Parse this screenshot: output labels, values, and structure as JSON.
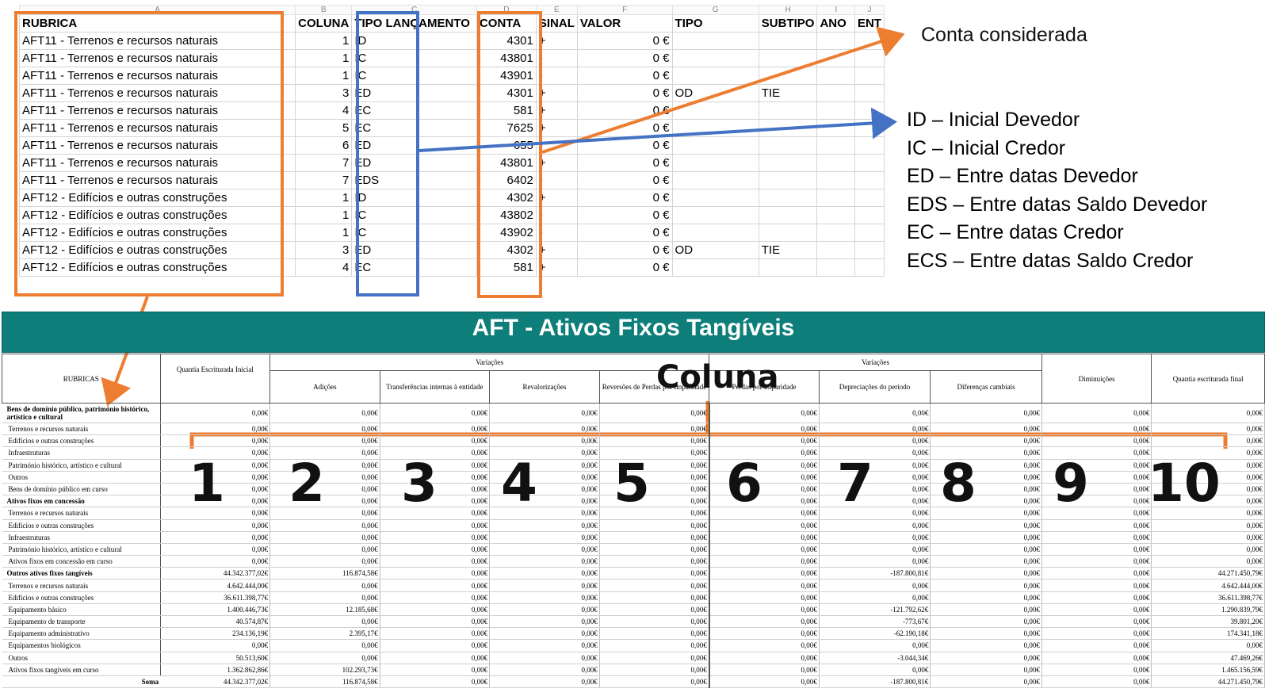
{
  "sheet": {
    "col_letters": [
      "A",
      "B",
      "C",
      "D",
      "E",
      "F",
      "G",
      "H",
      "I",
      "J"
    ],
    "headers": [
      "RUBRICA",
      "COLUNA",
      "TIPO LANÇAMENTO",
      "CONTA",
      "SINAL",
      "VALOR",
      "TIPO",
      "SUBTIPO",
      "ANO",
      "ENT"
    ],
    "rows": [
      [
        "AFT11 - Terrenos e recursos naturais",
        "1",
        "ID",
        "4301",
        "+",
        "0 €",
        "",
        ""
      ],
      [
        "AFT11 - Terrenos e recursos naturais",
        "1",
        "IC",
        "43801",
        "-",
        "0 €",
        "",
        ""
      ],
      [
        "AFT11 - Terrenos e recursos naturais",
        "1",
        "IC",
        "43901",
        "-",
        "0 €",
        "",
        ""
      ],
      [
        "AFT11 - Terrenos e recursos naturais",
        "3",
        "ED",
        "4301",
        "+",
        "0 €",
        "OD",
        "TIE"
      ],
      [
        "AFT11 - Terrenos e recursos naturais",
        "4",
        "EC",
        "581",
        "+",
        "0 €",
        "",
        ""
      ],
      [
        "AFT11 - Terrenos e recursos naturais",
        "5",
        "EC",
        "7625",
        "+",
        "0 €",
        "",
        ""
      ],
      [
        "AFT11 - Terrenos e recursos naturais",
        "6",
        "ED",
        "655",
        "-",
        "0 €",
        "",
        ""
      ],
      [
        "AFT11 - Terrenos e recursos naturais",
        "7",
        "ED",
        "43801",
        "+",
        "0 €",
        "",
        ""
      ],
      [
        "AFT11 - Terrenos e recursos naturais",
        "7",
        "EDS",
        "6402",
        "-",
        "0 €",
        "",
        ""
      ],
      [
        "AFT12 - Edifícios e outras construções",
        "1",
        "ID",
        "4302",
        "+",
        "0 €",
        "",
        ""
      ],
      [
        "AFT12 - Edifícios e outras construções",
        "1",
        "IC",
        "43802",
        "-",
        "0 €",
        "",
        ""
      ],
      [
        "AFT12 - Edifícios e outras construções",
        "1",
        "IC",
        "43902",
        "-",
        "0 €",
        "",
        ""
      ],
      [
        "AFT12 - Edifícios e outras construções",
        "3",
        "ED",
        "4302",
        "+",
        "0 €",
        "OD",
        "TIE"
      ],
      [
        "AFT12 - Edifícios e outras construções",
        "4",
        "EC",
        "581",
        "+",
        "0 €",
        "",
        ""
      ]
    ]
  },
  "annotations": {
    "conta_considerada": "Conta considerada",
    "legend": [
      "ID – Inicial Devedor",
      "IC – Inicial Credor",
      "ED – Entre datas Devedor",
      "EDS – Entre datas Saldo Devedor",
      "EC – Entre datas Credor",
      "ECS – Entre datas Saldo Credor"
    ],
    "coluna": "Coluna",
    "column_numbers": [
      "1",
      "2",
      "3",
      "4",
      "5",
      "6",
      "7",
      "8",
      "9",
      "10"
    ],
    "arrow_color_orange": "#ED7D31",
    "arrow_color_blue": "#4472C4"
  },
  "report": {
    "title": "AFT - Ativos Fixos Tangíveis",
    "title_bg": "#0d7e79",
    "col_rubricas": "RUBRICAS",
    "col_inicial": "Quantia Escriturada Inicial",
    "variacoes": "Variações",
    "col_adicoes": "Adições",
    "col_transf": "Transferências internas à entidade",
    "col_revalor": "Revalorizações",
    "col_revers": "Reversões de Perdas por Imparidade",
    "col_perdas": "Perdas por imparidade",
    "col_deprec": "Depreciações do período",
    "col_difcamb": "Diferenças cambiais",
    "col_diminu": "Diminuições",
    "col_final": "Quantia escriturada final",
    "soma_label": "Soma",
    "rows": [
      {
        "label": "Bens de domínio público, património histórico, artístico e cultural",
        "bold": true,
        "v": [
          "0,00€",
          "0,00€",
          "0,00€",
          "0,00€",
          "0,00€",
          "0,00€",
          "0,00€",
          "0,00€",
          "0,00€",
          "0,00€"
        ]
      },
      {
        "label": "Terrenos e recursos naturais",
        "bold": false,
        "v": [
          "0,00€",
          "0,00€",
          "0,00€",
          "0,00€",
          "0,00€",
          "0,00€",
          "0,00€",
          "0,00€",
          "0,00€",
          "0,00€"
        ]
      },
      {
        "label": "Edifícios e outras construções",
        "bold": false,
        "v": [
          "0,00€",
          "0,00€",
          "0,00€",
          "0,00€",
          "0,00€",
          "0,00€",
          "0,00€",
          "0,00€",
          "0,00€",
          "0,00€"
        ]
      },
      {
        "label": "Infraestruturas",
        "bold": false,
        "v": [
          "0,00€",
          "0,00€",
          "0,00€",
          "0,00€",
          "0,00€",
          "0,00€",
          "0,00€",
          "0,00€",
          "0,00€",
          "0,00€"
        ]
      },
      {
        "label": "Património histórico, artístico e cultural",
        "bold": false,
        "v": [
          "0,00€",
          "0,00€",
          "0,00€",
          "0,00€",
          "0,00€",
          "0,00€",
          "0,00€",
          "0,00€",
          "0,00€",
          "0,00€"
        ]
      },
      {
        "label": "Outros",
        "bold": false,
        "v": [
          "0,00€",
          "0,00€",
          "0,00€",
          "0,00€",
          "0,00€",
          "0,00€",
          "0,00€",
          "0,00€",
          "0,00€",
          "0,00€"
        ]
      },
      {
        "label": "Bens de domínio público em curso",
        "bold": false,
        "v": [
          "0,00€",
          "0,00€",
          "0,00€",
          "0,00€",
          "0,00€",
          "0,00€",
          "0,00€",
          "0,00€",
          "0,00€",
          "0,00€"
        ]
      },
      {
        "label": "Ativos fixos em concessão",
        "bold": true,
        "v": [
          "0,00€",
          "0,00€",
          "0,00€",
          "0,00€",
          "0,00€",
          "0,00€",
          "0,00€",
          "0,00€",
          "0,00€",
          "0,00€"
        ]
      },
      {
        "label": "Terrenos e recursos naturais",
        "bold": false,
        "v": [
          "0,00€",
          "0,00€",
          "0,00€",
          "0,00€",
          "0,00€",
          "0,00€",
          "0,00€",
          "0,00€",
          "0,00€",
          "0,00€"
        ]
      },
      {
        "label": "Edifícios e outras construções",
        "bold": false,
        "v": [
          "0,00€",
          "0,00€",
          "0,00€",
          "0,00€",
          "0,00€",
          "0,00€",
          "0,00€",
          "0,00€",
          "0,00€",
          "0,00€"
        ]
      },
      {
        "label": "Infraestruturas",
        "bold": false,
        "v": [
          "0,00€",
          "0,00€",
          "0,00€",
          "0,00€",
          "0,00€",
          "0,00€",
          "0,00€",
          "0,00€",
          "0,00€",
          "0,00€"
        ]
      },
      {
        "label": "Património histórico, artístico e cultural",
        "bold": false,
        "v": [
          "0,00€",
          "0,00€",
          "0,00€",
          "0,00€",
          "0,00€",
          "0,00€",
          "0,00€",
          "0,00€",
          "0,00€",
          "0,00€"
        ]
      },
      {
        "label": "Ativos fixos em concessão em curso",
        "bold": false,
        "v": [
          "0,00€",
          "0,00€",
          "0,00€",
          "0,00€",
          "0,00€",
          "0,00€",
          "0,00€",
          "0,00€",
          "0,00€",
          "0,00€"
        ]
      },
      {
        "label": "Outros ativos fixos tangíveis",
        "bold": true,
        "v": [
          "44.342.377,02€",
          "116.874,58€",
          "0,00€",
          "0,00€",
          "0,00€",
          "0,00€",
          "-187.800,81€",
          "0,00€",
          "0,00€",
          "44.271.450,79€"
        ]
      },
      {
        "label": "Terrenos e recursos naturais",
        "bold": false,
        "v": [
          "4.642.444,00€",
          "0,00€",
          "0,00€",
          "0,00€",
          "0,00€",
          "0,00€",
          "0,00€",
          "0,00€",
          "0,00€",
          "4.642.444,00€"
        ]
      },
      {
        "label": "Edifícios e outras construções",
        "bold": false,
        "v": [
          "36.611.398,77€",
          "0,00€",
          "0,00€",
          "0,00€",
          "0,00€",
          "0,00€",
          "0,00€",
          "0,00€",
          "0,00€",
          "36.611.398,77€"
        ]
      },
      {
        "label": "Equipamento básico",
        "bold": false,
        "v": [
          "1.400.446,73€",
          "12.185,68€",
          "0,00€",
          "0,00€",
          "0,00€",
          "0,00€",
          "-121.792,62€",
          "0,00€",
          "0,00€",
          "1.290.839,79€"
        ]
      },
      {
        "label": "Equipamento de transporte",
        "bold": false,
        "v": [
          "40.574,87€",
          "0,00€",
          "0,00€",
          "0,00€",
          "0,00€",
          "0,00€",
          "-773,67€",
          "0,00€",
          "0,00€",
          "39.801,20€"
        ]
      },
      {
        "label": "Equipamento administrativo",
        "bold": false,
        "v": [
          "234.136,19€",
          "2.395,17€",
          "0,00€",
          "0,00€",
          "0,00€",
          "0,00€",
          "-62.190,18€",
          "0,00€",
          "0,00€",
          "174.341,18€"
        ]
      },
      {
        "label": "Equipamentos biológicos",
        "bold": false,
        "v": [
          "0,00€",
          "0,00€",
          "0,00€",
          "0,00€",
          "0,00€",
          "0,00€",
          "0,00€",
          "0,00€",
          "0,00€",
          "0,00€"
        ]
      },
      {
        "label": "Outros",
        "bold": false,
        "v": [
          "50.513,60€",
          "0,00€",
          "0,00€",
          "0,00€",
          "0,00€",
          "0,00€",
          "-3.044,34€",
          "0,00€",
          "0,00€",
          "47.469,26€"
        ]
      },
      {
        "label": "Ativos fixos tangíveis em curso",
        "bold": false,
        "v": [
          "1.362.862,86€",
          "102.293,73€",
          "0,00€",
          "0,00€",
          "0,00€",
          "0,00€",
          "0,00€",
          "0,00€",
          "0,00€",
          "1.465.156,59€"
        ]
      }
    ],
    "soma": [
      "44.342.377,02€",
      "116.874,58€",
      "0,00€",
      "0,00€",
      "0,00€",
      "0,00€",
      "-187.800,81€",
      "0,00€",
      "0,00€",
      "44.271.450,79€"
    ]
  }
}
